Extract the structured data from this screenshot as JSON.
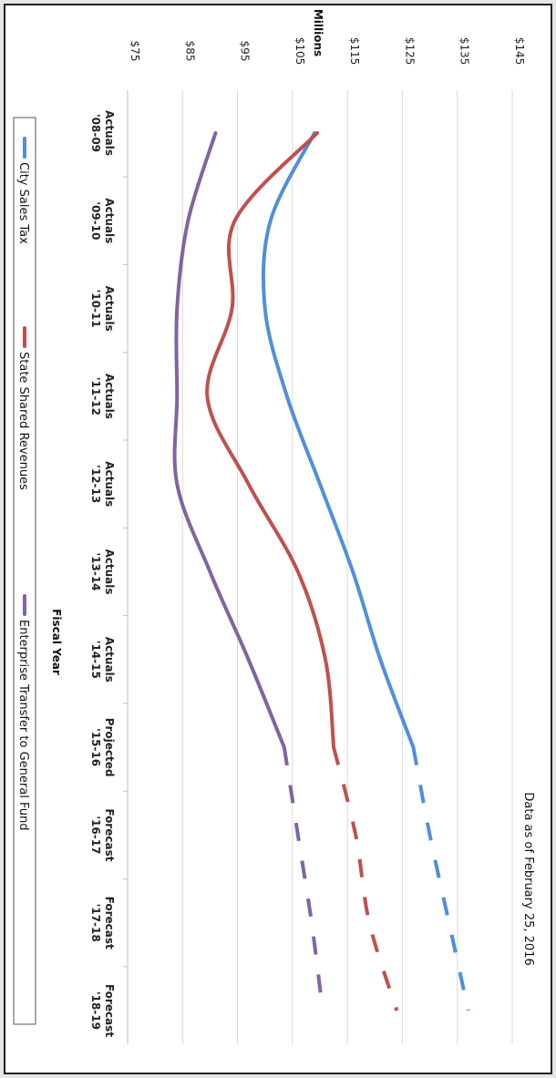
{
  "chart_data": {
    "type": "line",
    "orientation": "rotated-90-clockwise",
    "title": "",
    "note": "Data as of February 25, 2016",
    "xlabel": "Fiscal Year",
    "ylabel": "Millions",
    "ylim": [
      75,
      145
    ],
    "yticks": [
      "$75",
      "$85",
      "$95",
      "$105",
      "$115",
      "$125",
      "$135",
      "$145"
    ],
    "ytick_values": [
      75,
      85,
      95,
      105,
      115,
      125,
      135,
      145
    ],
    "categories": [
      [
        "Actuals",
        "'08-09"
      ],
      [
        "Actuals",
        "'09-10"
      ],
      [
        "Actuals",
        "'10-11"
      ],
      [
        "Actuals",
        "'11-12"
      ],
      [
        "Actuals",
        "'12-13"
      ],
      [
        "Actuals",
        "'13-14"
      ],
      [
        "Actuals",
        "'14-15"
      ],
      [
        "Projected",
        "'15-16"
      ],
      [
        "Forecast",
        "'16-17"
      ],
      [
        "Forecast",
        "'17-18"
      ],
      [
        "Forecast",
        "'18-19"
      ]
    ],
    "actual_through_index": 7,
    "grid": true,
    "legend_position": "bottom",
    "series": [
      {
        "name": "City Sales Tax",
        "color": "#4f8fdb",
        "values": [
          109,
          101,
          100,
          104,
          110,
          116,
          121,
          127,
          130,
          133.5,
          137
        ]
      },
      {
        "name": "State Shared Revenues",
        "color": "#c0504d",
        "values": [
          109.5,
          94.5,
          94,
          89.5,
          97,
          106,
          111,
          112.5,
          116.5,
          119,
          124
        ]
      },
      {
        "name": "Enterprise Transfer to General Fund",
        "color": "#8064a2",
        "values": [
          91,
          86,
          84,
          84,
          84,
          90,
          97,
          103.5,
          106,
          108.5,
          110.5
        ]
      }
    ]
  }
}
